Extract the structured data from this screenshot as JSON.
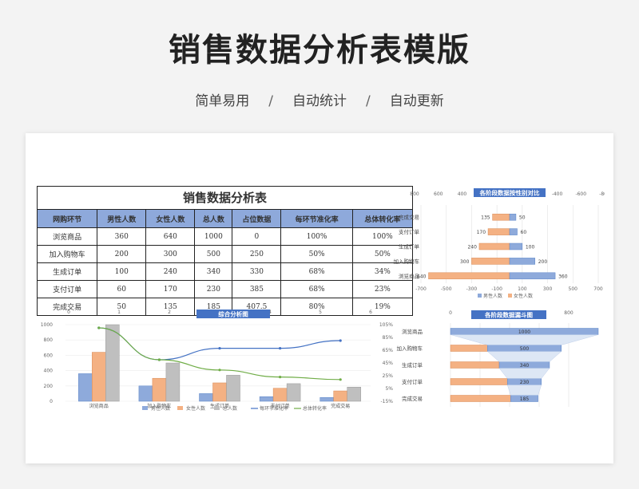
{
  "header": {
    "title": "销售数据分析表模版",
    "tags": [
      "简单易用",
      "自动统计",
      "自动更新"
    ],
    "separator": "/"
  },
  "table": {
    "title": "销售数据分析表",
    "columns": [
      "网购环节",
      "男性人数",
      "女性人数",
      "总人数",
      "占位数据",
      "每环节准化率",
      "总体转化率"
    ],
    "rows": [
      [
        "浏览商品",
        "360",
        "640",
        "1000",
        "0",
        "100%",
        "100%"
      ],
      [
        "加入购物车",
        "200",
        "300",
        "500",
        "250",
        "50%",
        "50%"
      ],
      [
        "生成订单",
        "100",
        "240",
        "340",
        "330",
        "68%",
        "34%"
      ],
      [
        "支付订单",
        "60",
        "170",
        "230",
        "385",
        "68%",
        "23%"
      ],
      [
        "完成交易",
        "50",
        "135",
        "185",
        "407.5",
        "80%",
        "19%"
      ]
    ]
  },
  "colors": {
    "male": "#8eaadb",
    "female": "#f4b183",
    "total": "#bfbfbf",
    "step_rate": "#4472c4",
    "overall_rate": "#70ad47",
    "title_bar": "#4472c4"
  },
  "chart_data": [
    {
      "type": "bar",
      "title": "各阶段数据按性别对比",
      "orientation": "horizontal-diverging",
      "categories": [
        "完成交易",
        "支付订单",
        "生成订单",
        "加入购物车",
        "浏览商品"
      ],
      "series": [
        {
          "name": "男性人数",
          "values": [
            50,
            60,
            100,
            200,
            360
          ]
        },
        {
          "name": "女性人数",
          "values": [
            135,
            170,
            240,
            300,
            640
          ]
        }
      ],
      "top_ticks": [
        "800",
        "600",
        "400",
        "200",
        "0",
        "-200",
        "-400",
        "-600",
        "-800"
      ],
      "bottom_ticks": [
        "-700",
        "-500",
        "-300",
        "-100",
        "100",
        "300",
        "500",
        "700"
      ],
      "xlim": [
        -700,
        700
      ],
      "legend": "bottom"
    },
    {
      "type": "bar",
      "title": "综合分析图",
      "categories": [
        "浏览商品",
        "加入购物车",
        "生成订单",
        "支付订单",
        "完成交易"
      ],
      "series": [
        {
          "name": "男性人数",
          "values": [
            360,
            200,
            100,
            60,
            50
          ]
        },
        {
          "name": "女性人数",
          "values": [
            640,
            300,
            240,
            170,
            135
          ]
        },
        {
          "name": "总人数",
          "values": [
            1000,
            500,
            340,
            230,
            185
          ]
        },
        {
          "name": "每环节准化率",
          "values": [
            100,
            50,
            68,
            68,
            80
          ],
          "kind": "line"
        },
        {
          "name": "总体转化率",
          "values": [
            100,
            50,
            34,
            23,
            19
          ],
          "kind": "line"
        }
      ],
      "left_ticks": [
        "1000",
        "800",
        "600",
        "400",
        "200",
        "0"
      ],
      "right_ticks": [
        "105%",
        "85%",
        "65%",
        "45%",
        "25%",
        "5%",
        "-15%"
      ],
      "top_ticks": [
        "0",
        "1",
        "2",
        "3",
        "4",
        "5",
        "6"
      ],
      "ylim": [
        0,
        1000
      ],
      "y2lim": [
        -15,
        105
      ],
      "legend": "bottom"
    },
    {
      "type": "bar",
      "title": "各阶段数据漏斗图",
      "orientation": "horizontal-funnel",
      "categories": [
        "浏览商品",
        "加入购物车",
        "生成订单",
        "支付订单",
        "完成交易"
      ],
      "values": [
        1000,
        500,
        340,
        230,
        185
      ],
      "placeholder": [
        0,
        250,
        330,
        385,
        407.5
      ],
      "top_ticks": [
        "0",
        "200",
        "400",
        "600",
        "800"
      ],
      "xlim": [
        0,
        1000
      ]
    }
  ]
}
